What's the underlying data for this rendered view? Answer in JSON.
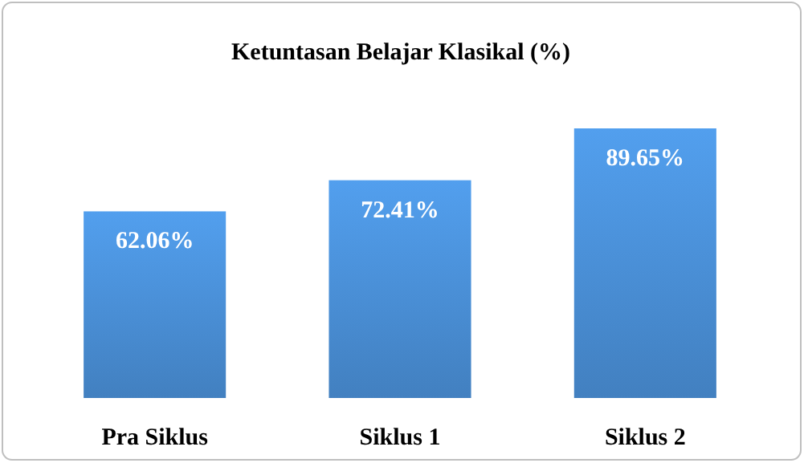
{
  "chart_data": {
    "type": "bar",
    "title": "Ketuntasan Belajar Klasikal (%)",
    "categories": [
      "Pra Siklus",
      "Siklus 1",
      "Siklus 2"
    ],
    "values": [
      62.06,
      72.41,
      89.65
    ],
    "value_labels": [
      "62.06%",
      "72.41%",
      "89.65%"
    ],
    "color": "#4a8fd6"
  }
}
